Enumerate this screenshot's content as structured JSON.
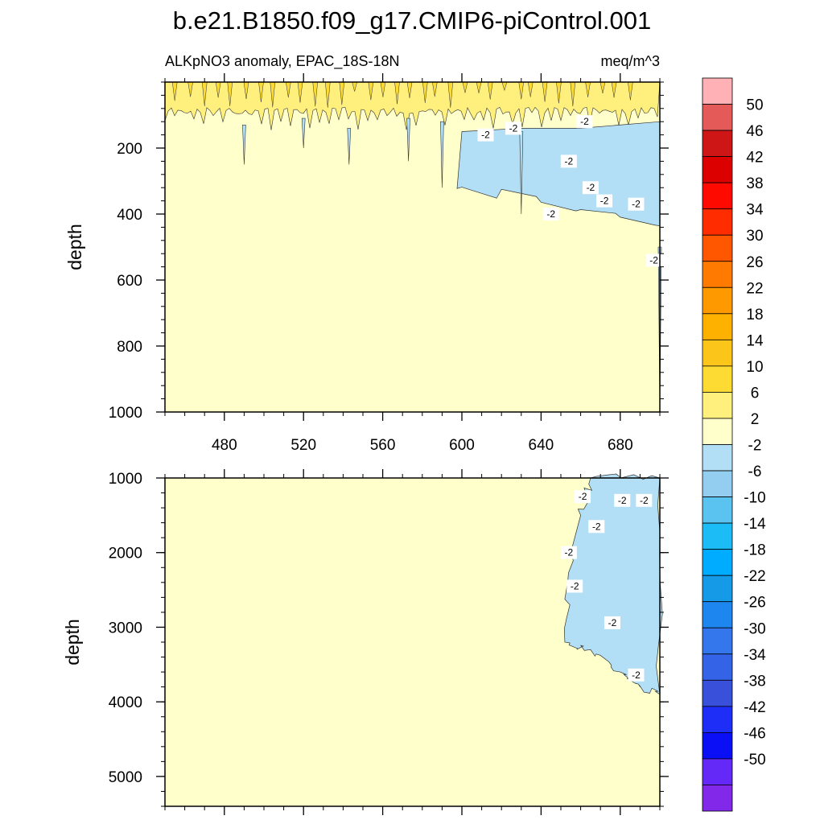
{
  "chart_data": {
    "type": "contour",
    "title": "b.e21.B1850.f09_g17.CMIP6-piControl.001",
    "subtitle_left": "ALKpNO3 anomaly, EPAC_18S-18N",
    "subtitle_right": "meq/m^3",
    "x_range": [
      450,
      700
    ],
    "x_ticks": [
      480,
      520,
      560,
      600,
      640,
      680
    ],
    "x_tick_labels": [
      "480",
      "520",
      "560",
      "600",
      "640",
      "680"
    ],
    "panels": [
      {
        "name": "upper",
        "ylabel": "depth",
        "y_range": [
          0,
          1000
        ],
        "y_reversed": true,
        "y_ticks": [
          200,
          400,
          600,
          800,
          1000
        ],
        "y_tick_labels": [
          "200",
          "400",
          "600",
          "800",
          "1000"
        ],
        "background_level": "-2 to 2",
        "positive_band_bottom": 120,
        "negative_region_lower_boundary": [
          [
            600,
            320
          ],
          [
            620,
            340
          ],
          [
            640,
            370
          ],
          [
            660,
            390
          ],
          [
            680,
            410
          ],
          [
            700,
            450
          ]
        ],
        "negative_region_upper_boundary": [
          [
            600,
            150
          ],
          [
            630,
            140
          ],
          [
            660,
            140
          ],
          [
            700,
            120
          ]
        ],
        "contour_labels": [
          {
            "x": 612,
            "y": 160,
            "text": "-2"
          },
          {
            "x": 626,
            "y": 140,
            "text": "-2"
          },
          {
            "x": 654,
            "y": 240,
            "text": "-2"
          },
          {
            "x": 662,
            "y": 120,
            "text": "-2"
          },
          {
            "x": 645,
            "y": 400,
            "text": "-2"
          },
          {
            "x": 665,
            "y": 320,
            "text": "-2"
          },
          {
            "x": 672,
            "y": 360,
            "text": "-2"
          },
          {
            "x": 688,
            "y": 370,
            "text": "-2"
          },
          {
            "x": 697,
            "y": 540,
            "text": "-2"
          }
        ]
      },
      {
        "name": "lower",
        "ylabel": "depth",
        "y_range": [
          1000,
          5400
        ],
        "y_reversed": true,
        "y_ticks": [
          1000,
          2000,
          3000,
          4000,
          5000
        ],
        "y_tick_labels": [
          "1000",
          "2000",
          "3000",
          "4000",
          "5000"
        ],
        "background_level": "-2 to 2",
        "negative_region_outline": [
          [
            655,
            2000
          ],
          [
            652,
            3200
          ],
          [
            665,
            3300
          ],
          [
            680,
            3600
          ],
          [
            690,
            3800
          ],
          [
            700,
            3900
          ],
          [
            700,
            1000
          ],
          [
            665,
            1000
          ],
          [
            660,
            1500
          ]
        ],
        "contour_labels": [
          {
            "x": 661,
            "y": 1250,
            "text": "-2"
          },
          {
            "x": 668,
            "y": 1650,
            "text": "-2"
          },
          {
            "x": 681,
            "y": 1300,
            "text": "-2"
          },
          {
            "x": 692,
            "y": 1300,
            "text": "-2"
          },
          {
            "x": 654,
            "y": 2000,
            "text": "-2"
          },
          {
            "x": 657,
            "y": 2450,
            "text": "-2"
          },
          {
            "x": 676,
            "y": 2940,
            "text": "-2"
          },
          {
            "x": 688,
            "y": 3640,
            "text": "-2"
          }
        ]
      }
    ],
    "colorbar": {
      "labels": [
        "50",
        "46",
        "42",
        "38",
        "34",
        "30",
        "26",
        "22",
        "18",
        "14",
        "10",
        "6",
        "2",
        "-2",
        "-6",
        "-10",
        "-14",
        "-18",
        "-22",
        "-26",
        "-30",
        "-34",
        "-38",
        "-42",
        "-46",
        "-50"
      ],
      "colors": [
        "#ffb1b5",
        "#e45a59",
        "#ce1616",
        "#dd0000",
        "#ff0a00",
        "#ff2c00",
        "#ff5600",
        "#ff7a00",
        "#ff9900",
        "#ffb100",
        "#fcc51a",
        "#fddb33",
        "#fff07d",
        "#ffffcc",
        "#b2dff5",
        "#93cdef",
        "#5bc3f0",
        "#1cbdf7",
        "#00acff",
        "#159ae8",
        "#1e87ef",
        "#3477ed",
        "#3463e7",
        "#3950db",
        "#1f2ef6",
        "#0a0ff5",
        "#6428f7",
        "#8228e8"
      ]
    }
  }
}
